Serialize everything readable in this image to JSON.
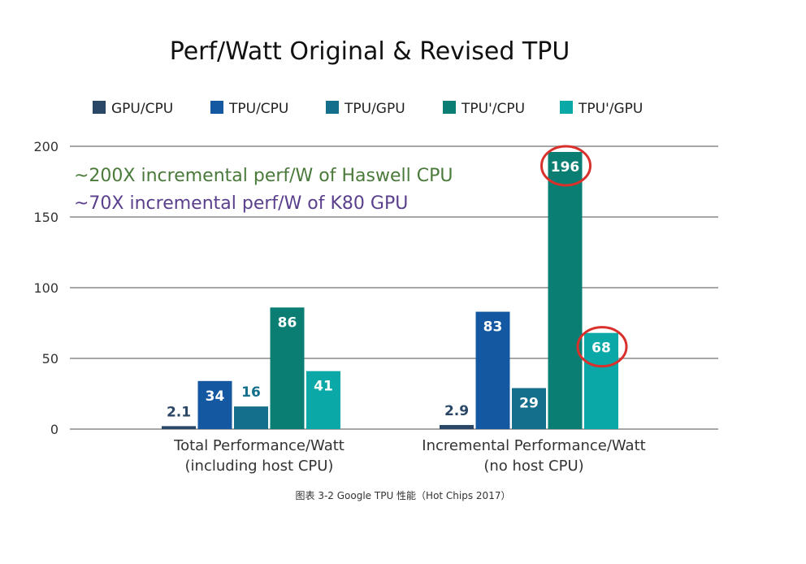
{
  "chart_data": {
    "type": "bar",
    "title": "Perf/Watt Original & Revised TPU",
    "xlabel": "",
    "ylabel": "",
    "ylim": [
      0,
      200
    ],
    "yticks": [
      "0",
      "50",
      "100",
      "150",
      "200"
    ],
    "grid": true,
    "legend_position": "top",
    "categories": [
      [
        "Total Performance/Watt",
        "(including host CPU)"
      ],
      [
        "Incremental Performance/Watt",
        "(no host CPU)"
      ]
    ],
    "series": [
      {
        "name": "GPU/CPU",
        "color": "#2a4767",
        "values": [
          2.1,
          2.9
        ],
        "labels": [
          "2.1",
          "2.9"
        ]
      },
      {
        "name": "TPU/CPU",
        "color": "#1458a2",
        "values": [
          34,
          83
        ],
        "labels": [
          "34",
          "83"
        ]
      },
      {
        "name": "TPU/GPU",
        "color": "#146f8c",
        "values": [
          16,
          29
        ],
        "labels": [
          "16",
          "29"
        ]
      },
      {
        "name": "TPU'/CPU",
        "color": "#0a7e72",
        "values": [
          86,
          196
        ],
        "labels": [
          "86",
          "196"
        ]
      },
      {
        "name": "TPU'/GPU",
        "color": "#0aa8a6",
        "values": [
          41,
          68
        ],
        "labels": [
          "41",
          "68"
        ]
      }
    ],
    "annotations": [
      {
        "text": "~200X incremental perf/W of Haswell CPU",
        "color": "#4a7a3a"
      },
      {
        "text": "~70X incremental perf/W of K80 GPU",
        "color": "#5a3f8c"
      }
    ],
    "highlight_circles": [
      {
        "series": 3,
        "category": 1,
        "color": "#d9302c"
      },
      {
        "series": 4,
        "category": 1,
        "color": "#d9302c"
      }
    ]
  },
  "caption": "图表 3-2 Google TPU 性能（Hot Chips 2017）"
}
